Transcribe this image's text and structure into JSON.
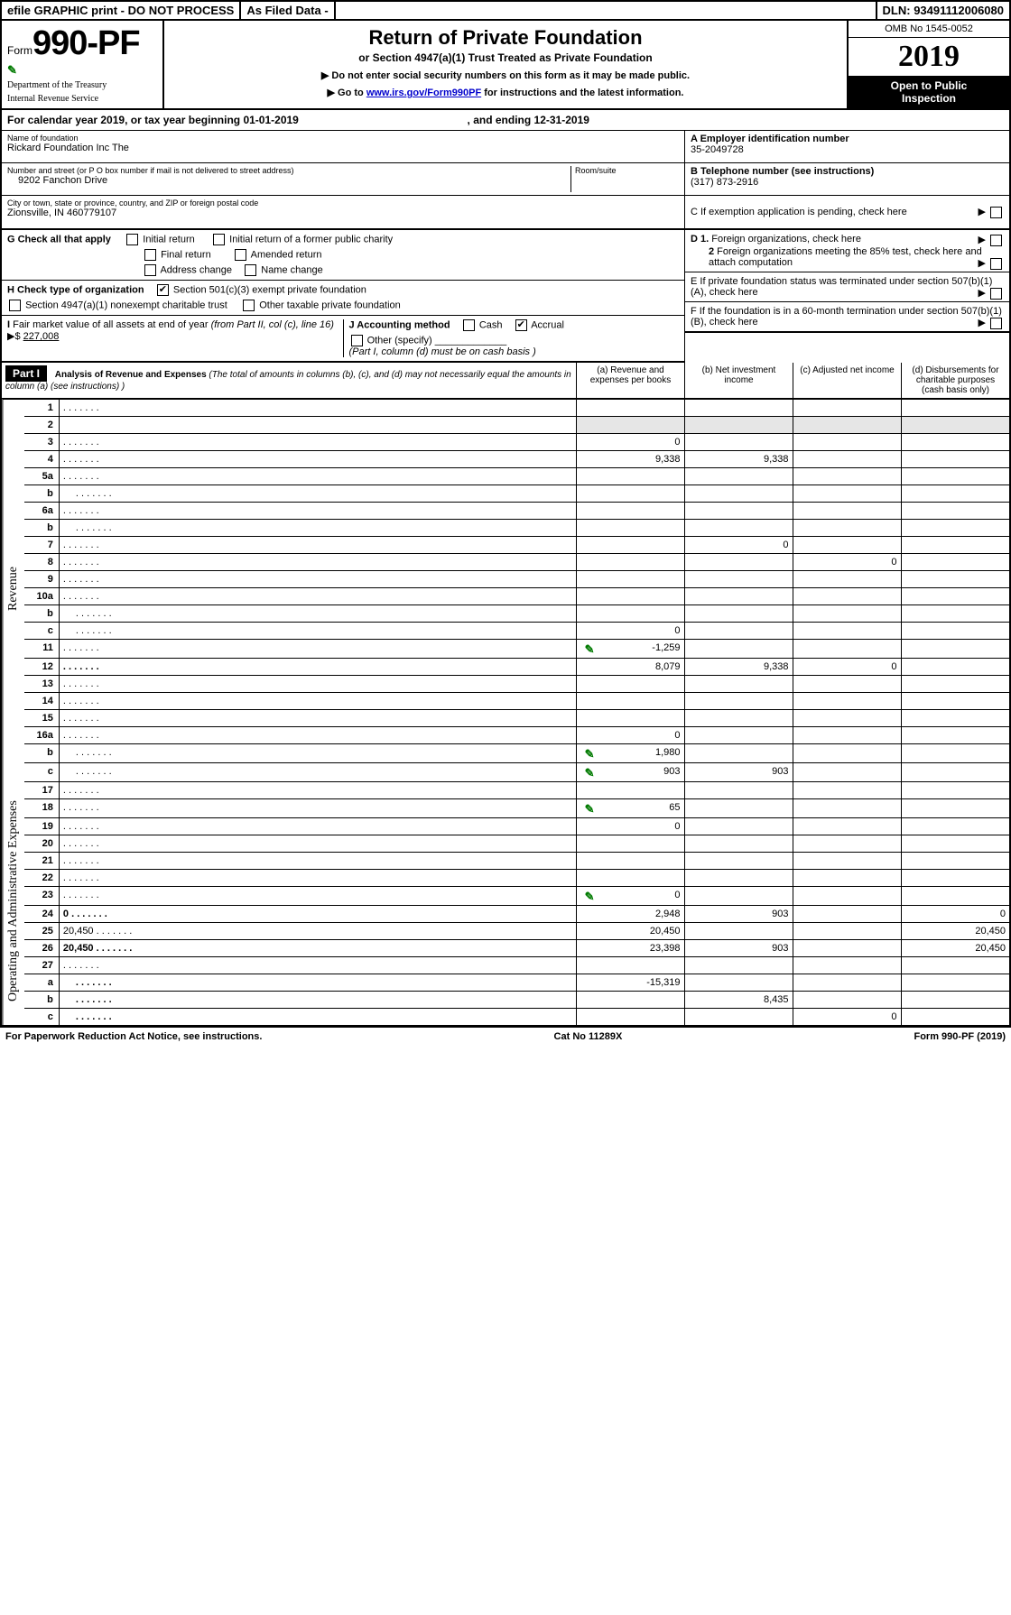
{
  "topbar": {
    "efile": "efile GRAPHIC print - DO NOT PROCESS",
    "asfiled": "As Filed Data -",
    "dln": "DLN: 93491112006080"
  },
  "header": {
    "form_prefix": "Form",
    "form_number": "990-PF",
    "dept1": "Department of the Treasury",
    "dept2": "Internal Revenue Service",
    "title": "Return of Private Foundation",
    "subtitle": "or Section 4947(a)(1) Trust Treated as Private Foundation",
    "note1": "▶ Do not enter social security numbers on this form as it may be made public.",
    "note2_pre": "▶ Go to ",
    "note2_link": "www.irs.gov/Form990PF",
    "note2_post": " for instructions and the latest information.",
    "omb": "OMB No 1545-0052",
    "year": "2019",
    "open1": "Open to Public",
    "open2": "Inspection"
  },
  "calendar": {
    "text_pre": "For calendar year 2019, or tax year beginning ",
    "begin": "01-01-2019",
    "text_mid": " , and ending ",
    "end": "12-31-2019"
  },
  "info": {
    "name_lbl": "Name of foundation",
    "name": "Rickard Foundation Inc The",
    "addr_lbl": "Number and street (or P O  box number if mail is not delivered to street address)",
    "room_lbl": "Room/suite",
    "addr": "9202 Fanchon Drive",
    "city_lbl": "City or town, state or province, country, and ZIP or foreign postal code",
    "city": "Zionsville, IN  460779107",
    "A_lbl": "A Employer identification number",
    "A_val": "35-2049728",
    "B_lbl": "B Telephone number (see instructions)",
    "B_val": "(317) 873-2916",
    "C_lbl": "C If exemption application is pending, check here"
  },
  "G": {
    "lbl": "G Check all that apply",
    "opts": [
      "Initial return",
      "Initial return of a former public charity",
      "Final return",
      "Amended return",
      "Address change",
      "Name change"
    ]
  },
  "H": {
    "lbl": "H Check type of organization",
    "opt1": "Section 501(c)(3) exempt private foundation",
    "opt2": "Section 4947(a)(1) nonexempt charitable trust",
    "opt3": "Other taxable private foundation"
  },
  "I": {
    "lbl": "I Fair market value of all assets at end of year (from Part II, col  (c), line 16) ▶$ ",
    "val": "227,008"
  },
  "J": {
    "lbl": "J Accounting method",
    "cash": "Cash",
    "accrual": "Accrual",
    "other": "Other (specify)",
    "note": "(Part I, column (d) must be on cash basis )"
  },
  "D": {
    "d1": "D 1. Foreign organizations, check here",
    "d2": "2  Foreign organizations meeting the 85% test, check here and attach computation"
  },
  "E": {
    "lbl": "E  If private foundation status was terminated under section 507(b)(1)(A), check here"
  },
  "F": {
    "lbl": "F  If the foundation is in a 60-month termination under section 507(b)(1)(B), check here"
  },
  "part1": {
    "tag": "Part I",
    "title": "Analysis of Revenue and Expenses",
    "title_note": " (The total of amounts in columns (b), (c), and (d) may not necessarily equal the amounts in column (a) (see instructions) )",
    "col_a": "(a)  Revenue and expenses per books",
    "col_b": "(b) Net investment income",
    "col_c": "(c) Adjusted net income",
    "col_d": "(d) Disbursements for charitable purposes (cash basis only)",
    "side_rev": "Revenue",
    "side_exp": "Operating and Administrative Expenses",
    "rows": [
      {
        "n": "1",
        "d": "",
        "a": "",
        "b": "",
        "c": "",
        "shade_b": false,
        "shade_c": true,
        "shade_d": true
      },
      {
        "n": "2",
        "d": "",
        "a": "",
        "b": "",
        "c": "",
        "span": true
      },
      {
        "n": "3",
        "d": "",
        "a": "0",
        "b": "",
        "c": ""
      },
      {
        "n": "4",
        "d": "",
        "a": "9,338",
        "b": "9,338",
        "c": ""
      },
      {
        "n": "5a",
        "d": "",
        "a": "",
        "b": "",
        "c": ""
      },
      {
        "n": "b",
        "d": "",
        "a": "",
        "b": "",
        "c": "",
        "indent": true
      },
      {
        "n": "6a",
        "d": "",
        "a": "",
        "b": "",
        "c": ""
      },
      {
        "n": "b",
        "d": "",
        "a": "",
        "b": "",
        "c": "",
        "indent": true
      },
      {
        "n": "7",
        "d": "",
        "a": "",
        "b": "0",
        "c": ""
      },
      {
        "n": "8",
        "d": "",
        "a": "",
        "b": "",
        "c": "0"
      },
      {
        "n": "9",
        "d": "",
        "a": "",
        "b": "",
        "c": ""
      },
      {
        "n": "10a",
        "d": "",
        "a": "",
        "b": "",
        "c": ""
      },
      {
        "n": "b",
        "d": "",
        "a": "",
        "b": "",
        "c": "",
        "indent": true
      },
      {
        "n": "c",
        "d": "",
        "a": "0",
        "b": "",
        "c": "",
        "indent": true
      },
      {
        "n": "11",
        "d": "",
        "a": "-1,259",
        "b": "",
        "c": "",
        "att": true
      },
      {
        "n": "12",
        "d": "",
        "a": "8,079",
        "b": "9,338",
        "c": "0",
        "bold": true
      },
      {
        "n": "13",
        "d": "",
        "a": "",
        "b": "",
        "c": ""
      },
      {
        "n": "14",
        "d": "",
        "a": "",
        "b": "",
        "c": ""
      },
      {
        "n": "15",
        "d": "",
        "a": "",
        "b": "",
        "c": ""
      },
      {
        "n": "16a",
        "d": "",
        "a": "0",
        "b": "",
        "c": ""
      },
      {
        "n": "b",
        "d": "",
        "a": "1,980",
        "b": "",
        "c": "",
        "indent": true,
        "att": true
      },
      {
        "n": "c",
        "d": "",
        "a": "903",
        "b": "903",
        "c": "",
        "indent": true,
        "att": true
      },
      {
        "n": "17",
        "d": "",
        "a": "",
        "b": "",
        "c": ""
      },
      {
        "n": "18",
        "d": "",
        "a": "65",
        "b": "",
        "c": "",
        "att": true
      },
      {
        "n": "19",
        "d": "",
        "a": "0",
        "b": "",
        "c": ""
      },
      {
        "n": "20",
        "d": "",
        "a": "",
        "b": "",
        "c": ""
      },
      {
        "n": "21",
        "d": "",
        "a": "",
        "b": "",
        "c": ""
      },
      {
        "n": "22",
        "d": "",
        "a": "",
        "b": "",
        "c": ""
      },
      {
        "n": "23",
        "d": "",
        "a": "0",
        "b": "",
        "c": "",
        "att": true
      },
      {
        "n": "24",
        "d": "0",
        "a": "2,948",
        "b": "903",
        "c": "",
        "bold": true
      },
      {
        "n": "25",
        "d": "20,450",
        "a": "20,450",
        "b": "",
        "c": ""
      },
      {
        "n": "26",
        "d": "20,450",
        "a": "23,398",
        "b": "903",
        "c": "",
        "bold": true
      },
      {
        "n": "27",
        "d": "",
        "a": "",
        "b": "",
        "c": ""
      },
      {
        "n": "a",
        "d": "",
        "a": "-15,319",
        "b": "",
        "c": "",
        "indent": true,
        "bold": true
      },
      {
        "n": "b",
        "d": "",
        "a": "",
        "b": "8,435",
        "c": "",
        "indent": true,
        "bold": true
      },
      {
        "n": "c",
        "d": "",
        "a": "",
        "b": "",
        "c": "0",
        "indent": true,
        "bold": true
      }
    ]
  },
  "footer": {
    "left": "For Paperwork Reduction Act Notice, see instructions.",
    "mid": "Cat  No  11289X",
    "right": "Form 990-PF (2019)"
  },
  "colors": {
    "border": "#000000",
    "shade": "#e6e6e6",
    "link": "#0000cc",
    "attach": "#007a00"
  }
}
